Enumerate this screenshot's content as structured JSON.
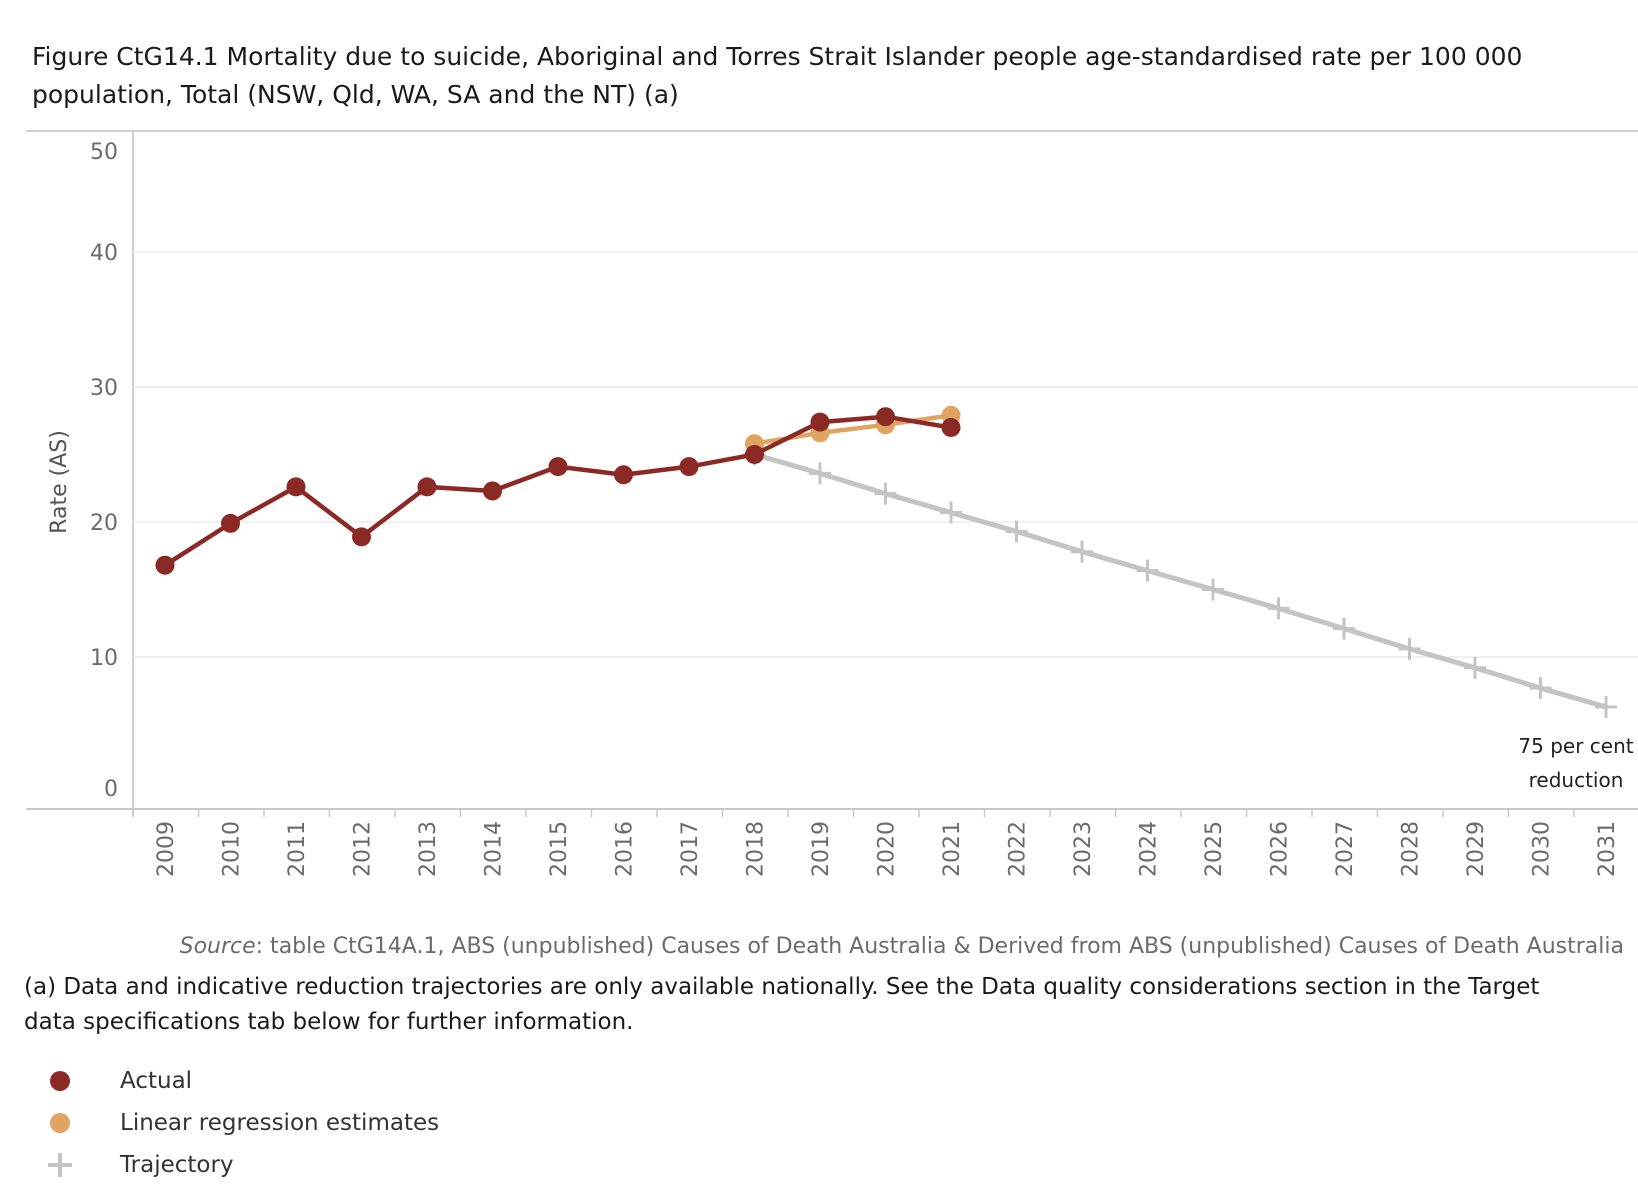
{
  "title_line1": "Figure CtG14.1 Mortality due to suicide, Aboriginal and Torres Strait Islander people age-standardised rate per 100 000",
  "title_line2": "population, Total (NSW, Qld, WA, SA and the NT) (a)",
  "chart_data": {
    "type": "line",
    "ylabel": "Rate (AS)",
    "ylim": [
      0,
      50
    ],
    "yticks": [
      0,
      10,
      20,
      30,
      40,
      50
    ],
    "categories": [
      "2009",
      "2010",
      "2011",
      "2012",
      "2013",
      "2014",
      "2015",
      "2016",
      "2017",
      "2018",
      "2019",
      "2020",
      "2021",
      "2022",
      "2023",
      "2024",
      "2025",
      "2026",
      "2027",
      "2028",
      "2029",
      "2030",
      "2031"
    ],
    "series": [
      {
        "name": "Actual",
        "color": "#8b2a24",
        "marker": "dot",
        "x": [
          "2009",
          "2010",
          "2011",
          "2012",
          "2013",
          "2014",
          "2015",
          "2016",
          "2017",
          "2018",
          "2019",
          "2020",
          "2021"
        ],
        "values": [
          16.8,
          19.9,
          22.6,
          18.9,
          22.6,
          22.3,
          24.1,
          23.5,
          24.1,
          25.0,
          27.4,
          27.8,
          27.0
        ]
      },
      {
        "name": "Linear regression estimates",
        "color": "#e0a462",
        "marker": "dot",
        "x": [
          "2018",
          "2019",
          "2020",
          "2021"
        ],
        "values": [
          25.8,
          26.6,
          27.2,
          27.9
        ]
      },
      {
        "name": "Trajectory",
        "color": "#c4c4c4",
        "marker": "plus",
        "x": [
          "2018",
          "2019",
          "2020",
          "2021",
          "2022",
          "2023",
          "2024",
          "2025",
          "2026",
          "2027",
          "2028",
          "2029",
          "2030",
          "2031"
        ],
        "values": [
          25.0,
          23.6,
          22.1,
          20.7,
          19.3,
          17.8,
          16.4,
          15.0,
          13.6,
          12.1,
          10.6,
          9.2,
          7.7,
          6.3
        ]
      }
    ],
    "annotation": {
      "line1": "75 per cent",
      "line2": "reduction"
    }
  },
  "source_label": "Source",
  "source_text": ": table CtG14A.1, ABS (unpublished) Causes of Death Australia & Derived from ABS (unpublished) Causes of Death Australia",
  "note": "(a) Data and indicative reduction trajectories are only available nationally. See the Data quality considerations section in the Target data specifications tab below for further information.",
  "legend": [
    {
      "label": "Actual",
      "color": "#8b2a24",
      "icon": "dot"
    },
    {
      "label": "Linear regression estimates",
      "color": "#e0a462",
      "icon": "dot"
    },
    {
      "label": "Trajectory",
      "color": "#c4c4c4",
      "icon": "plus"
    }
  ]
}
